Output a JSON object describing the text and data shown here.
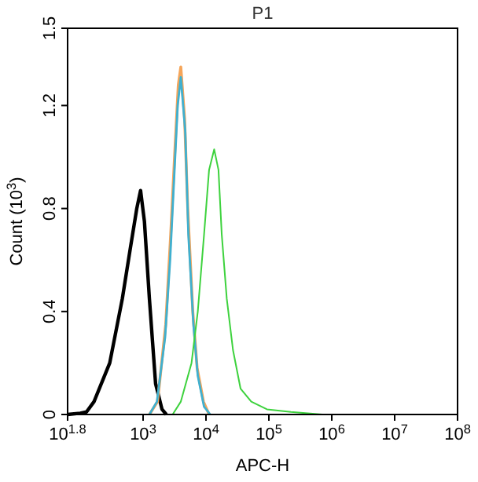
{
  "chart_data": {
    "type": "line",
    "title": "P1",
    "xlabel": "APC-H",
    "ylabel": "Count (10$^{3}$)",
    "log": "x",
    "xlim": [
      63.1,
      100000000
    ],
    "ylim": [
      0,
      1.5
    ],
    "xticks": [
      {
        "value": 63.1,
        "label": "10$^{1.8}$"
      },
      {
        "value": 1000,
        "label": "10$^{3}$"
      },
      {
        "value": 10000,
        "label": "10$^{4}$"
      },
      {
        "value": 100000,
        "label": "10$^{5}$"
      },
      {
        "value": 1000000,
        "label": "10$^{6}$"
      },
      {
        "value": 10000000,
        "label": "10$^{7}$"
      },
      {
        "value": 100000000,
        "label": "10$^{8}$"
      }
    ],
    "yticks": [
      0,
      0.4,
      0.8,
      1.2,
      1.5
    ],
    "grid": false,
    "marker": "none",
    "line_style": "solid",
    "series": [
      {
        "color": "#000000",
        "x": [
          63.1,
          100,
          126,
          166,
          295,
          468,
          631,
          794,
          912,
          1050,
          1260,
          1580,
          2000,
          2340
        ],
        "values": [
          0,
          0.005,
          0.01,
          0.05,
          0.2,
          0.45,
          0.65,
          0.8,
          0.87,
          0.75,
          0.45,
          0.12,
          0.02,
          0
        ]
      },
      {
        "color": "#f5a55a",
        "x": [
          1260,
          1700,
          2290,
          2750,
          3240,
          3630,
          3980,
          4570,
          5130,
          6170,
          7240,
          9120,
          11200
        ],
        "values": [
          0,
          0.05,
          0.35,
          0.7,
          1.05,
          1.28,
          1.35,
          1.15,
          0.8,
          0.4,
          0.18,
          0.05,
          0
        ]
      },
      {
        "color": "#3fb0d0",
        "x": [
          1260,
          1660,
          2240,
          2690,
          3160,
          3550,
          3980,
          4680,
          5250,
          6310,
          7410,
          9330,
          11700
        ],
        "values": [
          0,
          0.05,
          0.3,
          0.6,
          0.95,
          1.2,
          1.31,
          1.1,
          0.7,
          0.35,
          0.15,
          0.03,
          0
        ]
      },
      {
        "color": "#3ed23e",
        "x": [
          2950,
          3980,
          5890,
          7410,
          9330,
          11200,
          13500,
          15800,
          17800,
          21400,
          26900,
          35500,
          52500,
          93300,
          224000,
          708000
        ],
        "values": [
          0,
          0.05,
          0.2,
          0.4,
          0.7,
          0.95,
          1.03,
          0.95,
          0.7,
          0.45,
          0.25,
          0.1,
          0.05,
          0.02,
          0.01,
          0
        ]
      }
    ]
  }
}
